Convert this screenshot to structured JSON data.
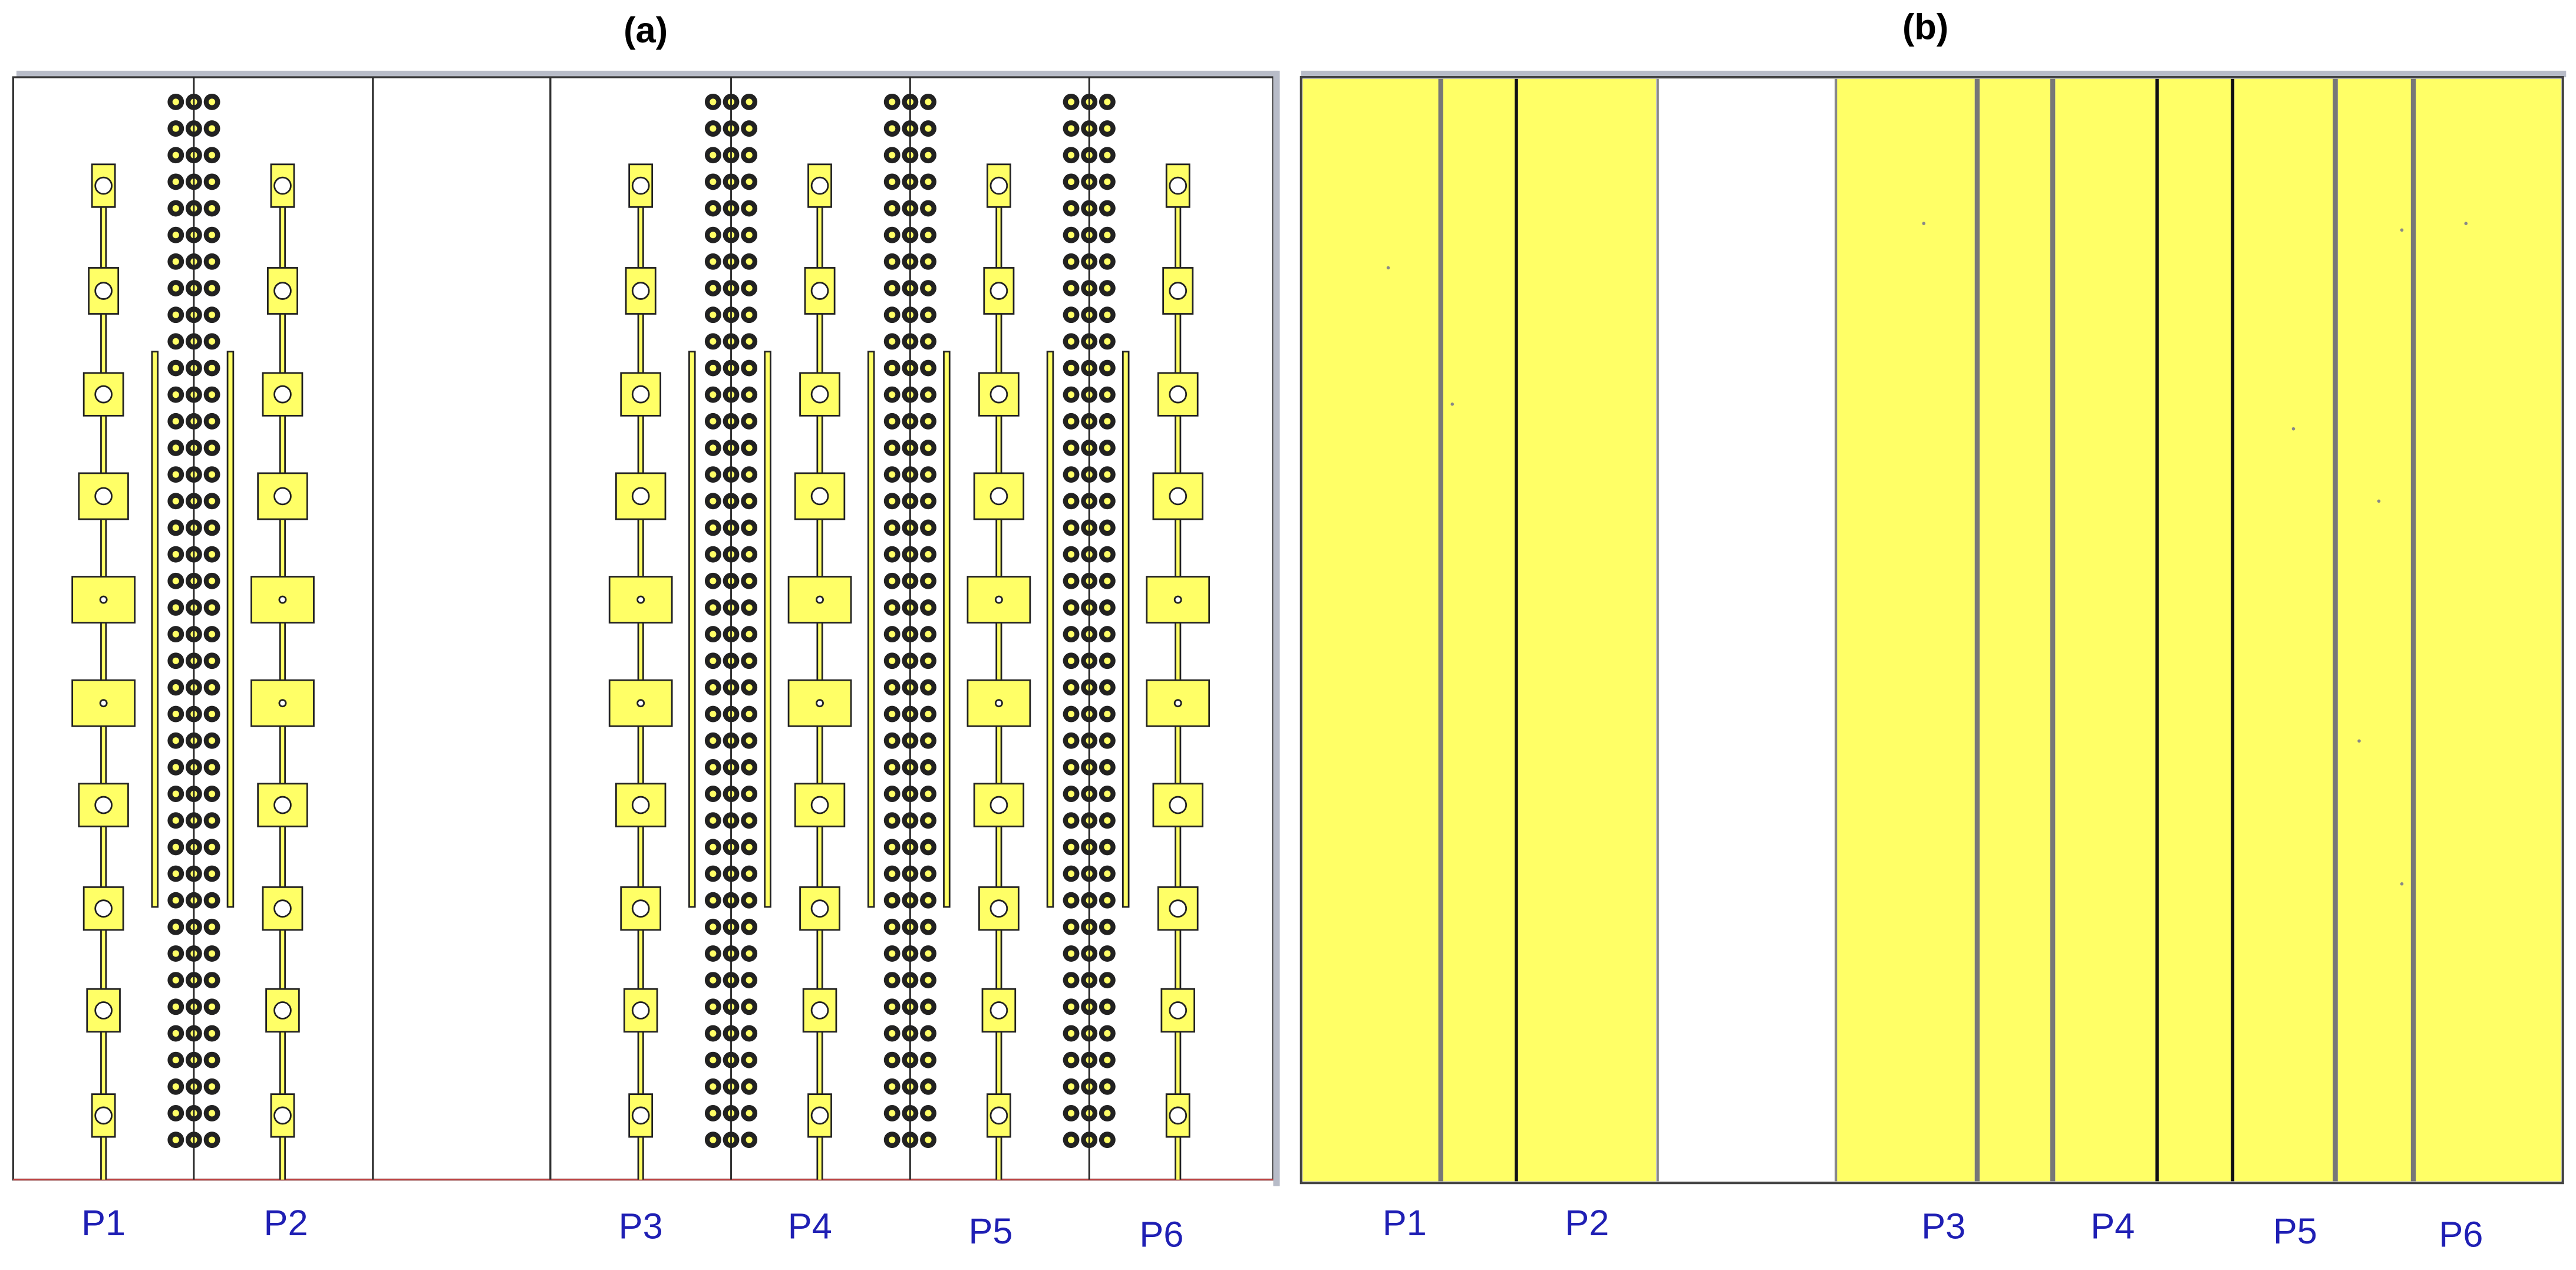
{
  "panels": [
    {
      "title": "(a)",
      "labels": [
        "P1",
        "P2",
        "P3",
        "P4",
        "P5",
        "P6"
      ]
    },
    {
      "title": "(b)",
      "labels": [
        "P1",
        "P2",
        "P3",
        "P4",
        "P5",
        "P6"
      ]
    }
  ]
}
